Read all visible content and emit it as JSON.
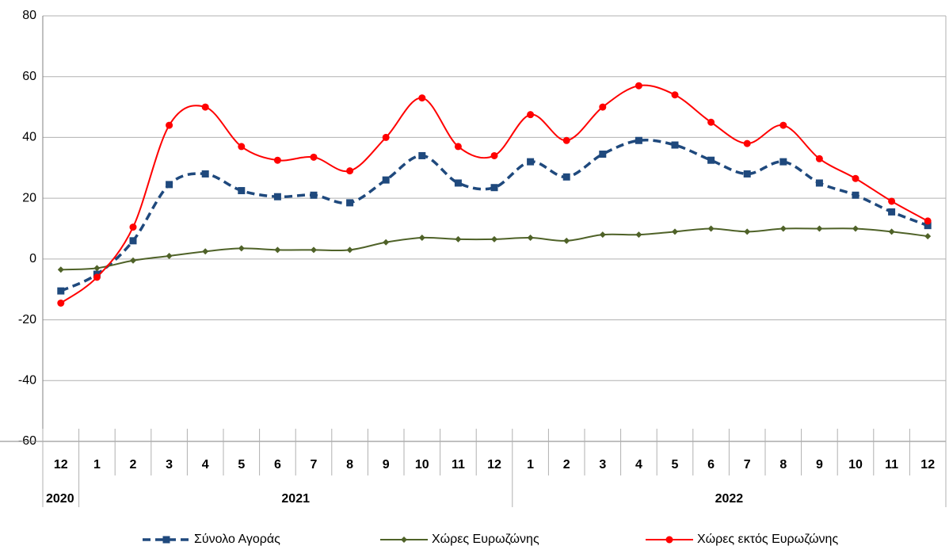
{
  "chart_data": {
    "type": "line",
    "categories": [
      "12",
      "1",
      "2",
      "3",
      "4",
      "5",
      "6",
      "7",
      "8",
      "9",
      "10",
      "11",
      "12",
      "1",
      "2",
      "3",
      "4",
      "5",
      "6",
      "7",
      "8",
      "9",
      "10",
      "11",
      "12"
    ],
    "years": [
      "2020",
      "2021",
      null,
      null,
      null,
      null,
      null,
      null,
      null,
      null,
      null,
      null,
      null,
      "2022",
      null,
      null,
      null,
      null,
      null,
      null,
      null,
      null,
      null,
      null,
      null
    ],
    "series": [
      {
        "name": "Σύνολο Αγοράς",
        "color": "#1f497d",
        "dash": true,
        "marker": "square",
        "values": [
          -10.5,
          -5,
          6,
          24.5,
          28,
          22.5,
          20.5,
          21,
          18.5,
          26,
          34,
          25,
          23.5,
          32,
          27,
          34.5,
          39,
          37.5,
          32.5,
          28,
          32,
          25,
          21,
          15.5,
          11
        ]
      },
      {
        "name": "Χώρες Ευρωζώνης",
        "color": "#4f6228",
        "dash": false,
        "marker": "diamond",
        "values": [
          -3.5,
          -3,
          -0.5,
          1,
          2.5,
          3.5,
          3,
          3,
          3,
          5.5,
          7,
          6.5,
          6.5,
          7,
          6,
          8,
          8,
          9,
          10,
          9,
          10,
          10,
          10,
          9,
          7.5
        ]
      },
      {
        "name": "Χώρες εκτός Ευρωζώνης",
        "color": "#ff0000",
        "dash": false,
        "marker": "circle",
        "values": [
          -14.5,
          -6,
          10.5,
          44,
          50,
          37,
          32.5,
          33.5,
          29,
          40,
          53,
          37,
          34,
          47.5,
          39,
          50,
          57,
          54,
          45,
          38,
          44,
          33,
          26.5,
          19,
          12.5
        ]
      }
    ],
    "ylim": [
      -60,
      80
    ],
    "yticks": [
      -60,
      -40,
      -20,
      0,
      20,
      40,
      60,
      80
    ],
    "grid": true,
    "legend": "bottom"
  }
}
